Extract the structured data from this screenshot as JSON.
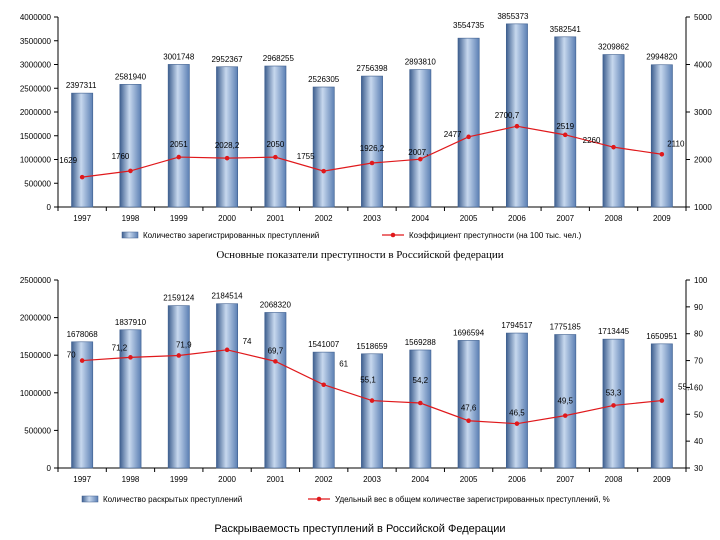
{
  "colors": {
    "bar": "#6f95c8",
    "bar_dark": "#3e5f8f",
    "bar_light": "#c7d8ee",
    "line": "#e0191c",
    "marker": "#e0191c"
  },
  "chart_data": [
    {
      "type": "bar",
      "title": "",
      "categories": [
        "1997",
        "1998",
        "1999",
        "2000",
        "2001",
        "2002",
        "2003",
        "2004",
        "2005",
        "2006",
        "2007",
        "2008",
        "2009"
      ],
      "series": [
        {
          "name": "Количество зарегистрированных преступлений",
          "type": "bar",
          "axis": "left",
          "values": [
            2397311,
            2581940,
            3001748,
            2952367,
            2968255,
            2526305,
            2756398,
            2893810,
            3554735,
            3855373,
            3582541,
            3209862,
            2994820
          ],
          "labels": [
            "2397311",
            "2581940",
            "3001748",
            "2952367",
            "2968255",
            "2526305",
            "2756398",
            "2893810",
            "3554735",
            "3855373",
            "3582541",
            "3209862",
            "2994820"
          ]
        },
        {
          "name": "Коэффициент преступности (на 100 тыс. чел.)",
          "type": "line",
          "axis": "right",
          "values": [
            1629,
            1760,
            2051,
            2028.2,
            2050,
            1755,
            1926.2,
            2007,
            2477,
            2700.7,
            2519,
            2260,
            2110
          ],
          "labels": [
            "1629",
            "1760",
            "2051",
            "2028,2",
            "2050",
            "1755",
            "1926,2",
            "2007,",
            "2477",
            "2700,7",
            "2519",
            "2260",
            "2110"
          ]
        }
      ],
      "ylim": [
        0,
        4000000
      ],
      "y_ticks": [
        "0",
        "500000",
        "1000000",
        "1500000",
        "2000000",
        "2500000",
        "3000000",
        "3500000",
        "4000000"
      ],
      "y2lim": [
        1000,
        5000
      ],
      "y2_ticks": [
        "1000",
        "2000",
        "3000",
        "4000",
        "5000"
      ],
      "legend": [
        "Количество зарегистрированных преступлений",
        "Коэффициент преступности (на 100 тыс. чел.)"
      ],
      "legend_position": "bottom",
      "caption": "Основные показатели преступности в Российской федерации"
    },
    {
      "type": "bar",
      "title": "",
      "categories": [
        "1997",
        "1998",
        "1999",
        "2000",
        "2001",
        "2002",
        "2003",
        "2004",
        "2005",
        "2006",
        "2007",
        "2008",
        "2009"
      ],
      "series": [
        {
          "name": "Количество раскрытых преступлений",
          "type": "bar",
          "axis": "left",
          "values": [
            1678068,
            1837910,
            2159124,
            2184514,
            2068320,
            1541007,
            1518659,
            1569288,
            1696594,
            1794517,
            1775185,
            1713445,
            1650951
          ],
          "labels": [
            "1678068",
            "1837910",
            "2159124",
            "2184514",
            "2068320",
            "1541007",
            "1518659",
            "1569288",
            "1696594",
            "1794517",
            "1775185",
            "1713445",
            "1650951"
          ]
        },
        {
          "name": "Удельный вес в общем количестве зарегистрированных преступлений, %",
          "type": "line",
          "axis": "right",
          "values": [
            70,
            71.2,
            71.9,
            74,
            69.7,
            61,
            55.1,
            54.2,
            47.6,
            46.5,
            49.5,
            53.3,
            55.1
          ],
          "labels": [
            "70",
            "71,2",
            "71,9",
            "74",
            "69,7",
            "61",
            "55,1",
            "54,2",
            "47,6",
            "46,5",
            "49,5",
            "53,3",
            "55,1"
          ]
        }
      ],
      "ylim": [
        0,
        2500000
      ],
      "y_ticks": [
        "0",
        "500000",
        "1000000",
        "1500000",
        "2000000",
        "2500000"
      ],
      "y2lim": [
        30,
        100
      ],
      "y2_ticks": [
        "30",
        "40",
        "50",
        "60",
        "70",
        "80",
        "90",
        "100"
      ],
      "legend": [
        "Количество раскрытых преступлений",
        "Удельный вес в общем количестве зарегистрированных преступлений, %"
      ],
      "legend_position": "bottom",
      "caption": "Раскрываемость преступлений в Российской Федерации"
    }
  ]
}
